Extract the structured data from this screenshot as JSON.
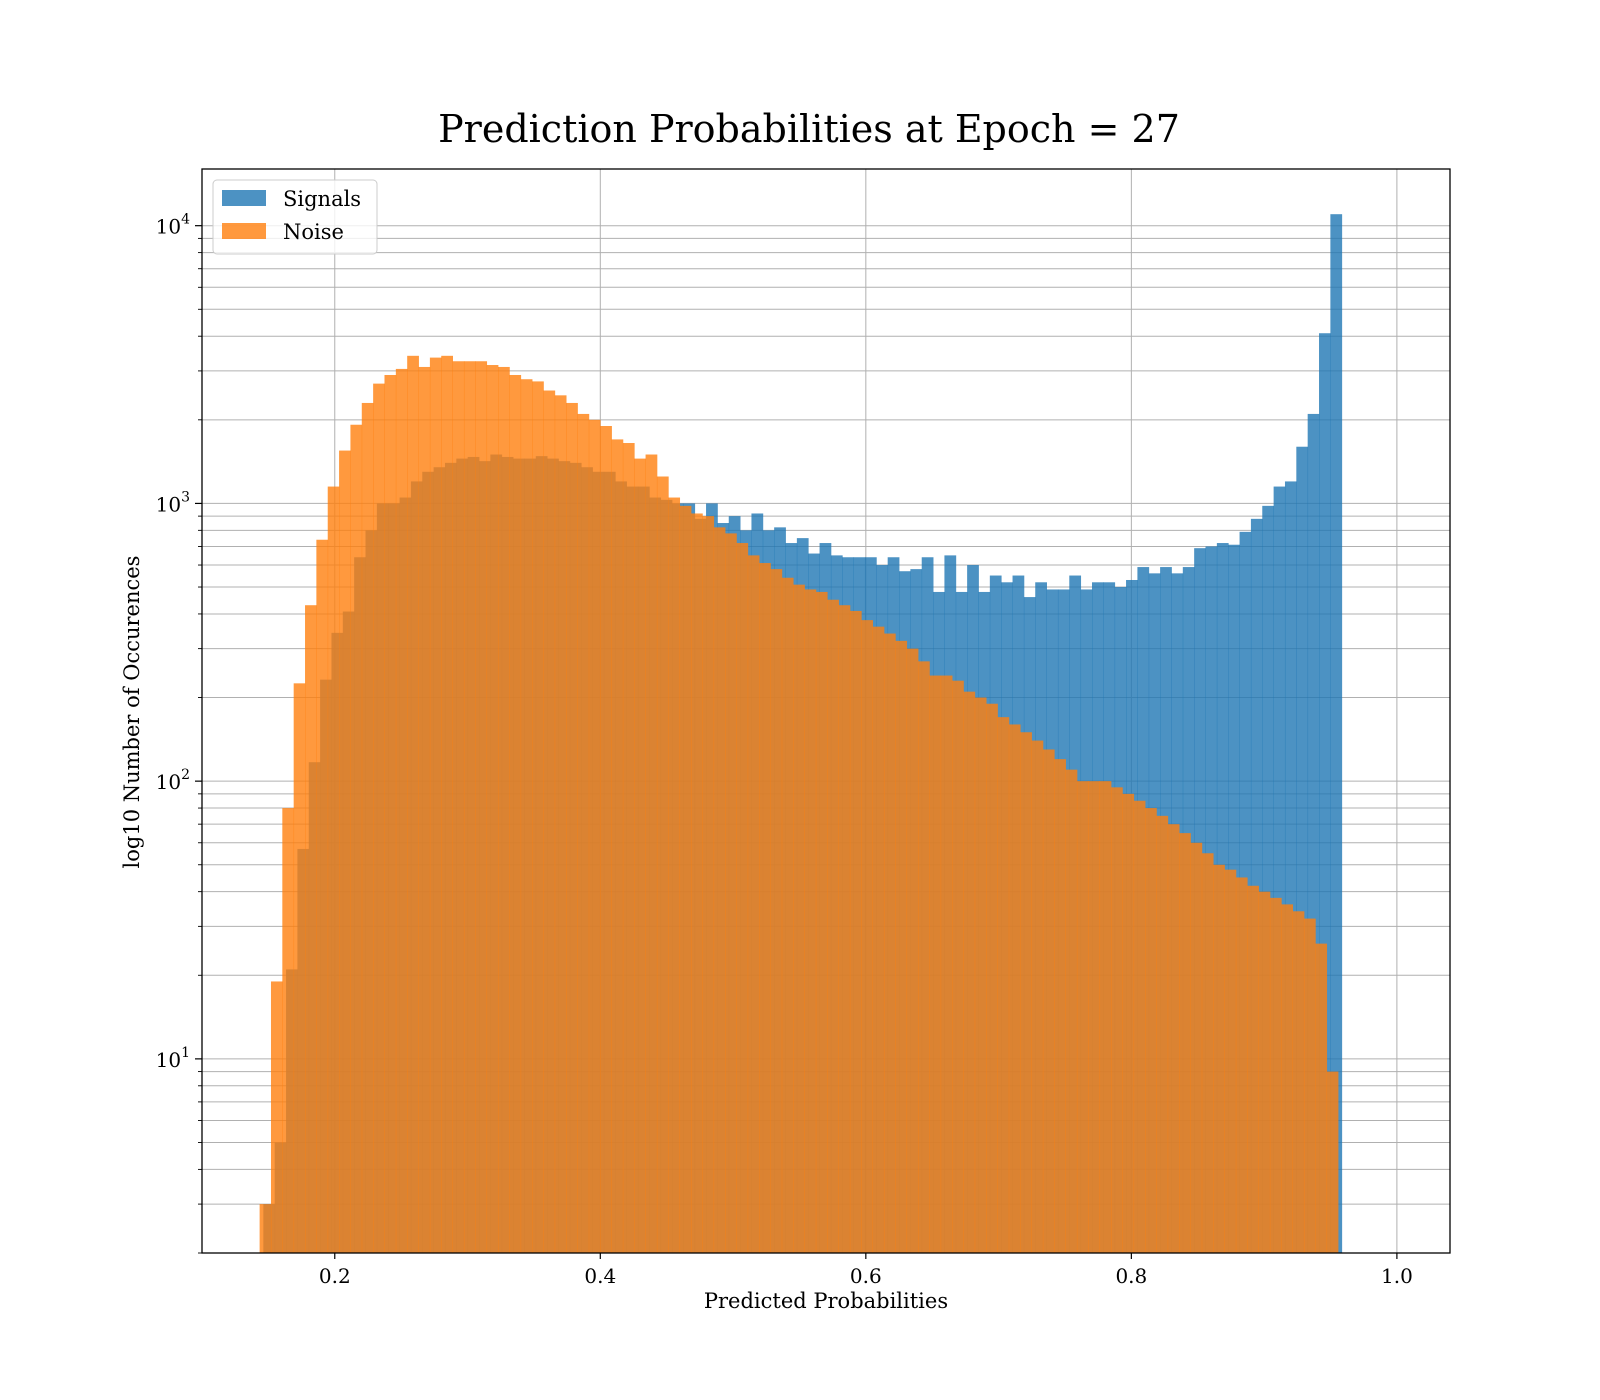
{
  "chart_data": {
    "type": "bar",
    "title": "Prediction Probabilities at Epoch = 27",
    "xlabel": "Predicted Probabilities",
    "ylabel": "log10 Number of Occurences",
    "xlim": [
      0.1,
      1.04
    ],
    "ylim": [
      2,
      16000
    ],
    "yscale": "log",
    "grid": true,
    "legend_position": "top-left",
    "x_ticks": [
      0.2,
      0.4,
      0.6,
      0.8,
      1.0
    ],
    "x_tick_labels": [
      "0.2",
      "0.4",
      "0.6",
      "0.8",
      "1.0"
    ],
    "y_ticks": [
      10,
      100,
      1000,
      10000
    ],
    "y_tick_labels": [
      {
        "base": "10",
        "exp": "1"
      },
      {
        "base": "10",
        "exp": "2"
      },
      {
        "base": "10",
        "exp": "3"
      },
      {
        "base": "10",
        "exp": "4"
      }
    ],
    "colors": {
      "signals": "#1f77b4",
      "noise": "#ff7f0e"
    },
    "series": [
      {
        "name": "Signals",
        "color": "#1f77b4",
        "alpha": 0.8,
        "bin_start": 0.1462,
        "bin_width": 0.00855,
        "values": [
          3,
          5,
          21,
          57,
          117,
          232,
          342,
          408,
          640,
          800,
          1000,
          1000,
          1050,
          1200,
          1300,
          1350,
          1400,
          1450,
          1470,
          1420,
          1500,
          1470,
          1450,
          1450,
          1480,
          1450,
          1420,
          1400,
          1350,
          1300,
          1300,
          1200,
          1150,
          1150,
          1050,
          1030,
          1000,
          1000,
          880,
          1000,
          850,
          900,
          800,
          920,
          800,
          820,
          720,
          750,
          660,
          720,
          650,
          640,
          640,
          640,
          600,
          640,
          570,
          580,
          640,
          480,
          650,
          480,
          600,
          480,
          550,
          520,
          550,
          460,
          520,
          490,
          490,
          550,
          490,
          520,
          520,
          500,
          530,
          590,
          560,
          590,
          560,
          590,
          690,
          700,
          720,
          710,
          790,
          880,
          980,
          1150,
          1200,
          1600,
          2100,
          4100,
          11000
        ]
      },
      {
        "name": "Noise",
        "color": "#ff7f0e",
        "alpha": 0.8,
        "bin_start": 0.1434,
        "bin_width": 0.00855,
        "values": [
          3,
          19,
          80,
          225,
          430,
          740,
          1150,
          1550,
          1920,
          2300,
          2700,
          2900,
          3050,
          3400,
          3100,
          3350,
          3400,
          3250,
          3250,
          3250,
          3150,
          3100,
          2900,
          2800,
          2750,
          2550,
          2450,
          2300,
          2100,
          2000,
          1900,
          1700,
          1650,
          1450,
          1500,
          1250,
          1050,
          980,
          920,
          900,
          820,
          780,
          720,
          650,
          610,
          580,
          540,
          510,
          490,
          480,
          450,
          430,
          410,
          380,
          360,
          340,
          320,
          300,
          270,
          240,
          240,
          230,
          210,
          200,
          190,
          170,
          160,
          150,
          140,
          130,
          120,
          110,
          100,
          100,
          100,
          95,
          90,
          85,
          80,
          75,
          70,
          65,
          60,
          55,
          50,
          48,
          45,
          42,
          40,
          38,
          36,
          34,
          32,
          26,
          9
        ]
      }
    ]
  }
}
